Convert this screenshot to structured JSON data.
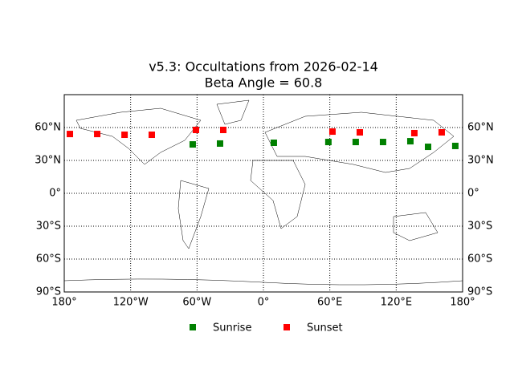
{
  "chart_data": {
    "type": "scatter",
    "title": "v5.3: Occultations from 2026-02-14",
    "subtitle": "Beta Angle = 60.8",
    "xlim": [
      -180,
      180
    ],
    "ylim": [
      -90,
      90
    ],
    "xticks": [
      {
        "value": -180,
        "label": "180°"
      },
      {
        "value": -120,
        "label": "120°W"
      },
      {
        "value": -60,
        "label": "60°W"
      },
      {
        "value": 0,
        "label": "0°"
      },
      {
        "value": 60,
        "label": "60°E"
      },
      {
        "value": 120,
        "label": "120°E"
      },
      {
        "value": 180,
        "label": "180°"
      }
    ],
    "yticks": [
      {
        "value": -90,
        "label": "90°S"
      },
      {
        "value": -60,
        "label": "60°S"
      },
      {
        "value": -30,
        "label": "30°S"
      },
      {
        "value": 0,
        "label": "0°"
      },
      {
        "value": 30,
        "label": "30°N"
      },
      {
        "value": 60,
        "label": "60°N"
      }
    ],
    "grid": true,
    "series": [
      {
        "name": "Sunrise",
        "color": "#008000",
        "x": [
          -63.9,
          -39.2,
          9.4,
          58.7,
          83.4,
          108.1,
          132.8,
          148.8,
          173.4
        ],
        "values": [
          44.6,
          45.4,
          46.1,
          46.8,
          46.8,
          46.8,
          47.5,
          42.4,
          43.2
        ]
      },
      {
        "name": "Sunset",
        "color": "#ff0000",
        "x": [
          -174.9,
          -150.2,
          -125.5,
          -100.9,
          -61.0,
          -36.3,
          62.4,
          87.1,
          136.4,
          161.1
        ],
        "values": [
          54.1,
          54.1,
          53.4,
          53.4,
          57.8,
          57.8,
          56.3,
          55.6,
          54.9,
          55.6
        ]
      }
    ]
  }
}
